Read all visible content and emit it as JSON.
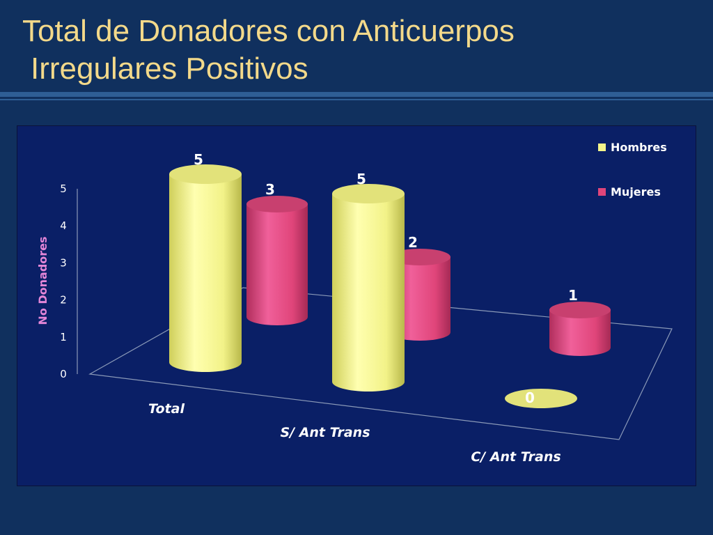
{
  "slide": {
    "title_line1": "Total de Donadores con Anticuerpos",
    "title_line2": "Irregulares Positivos"
  },
  "colors": {
    "background": "#10305e",
    "title": "#f3d98a",
    "plot_area": "#0a1f66",
    "hombres": "#f5f58a",
    "mujeres": "#e0457a",
    "ylabel": "#e486d8"
  },
  "chart_data": {
    "type": "bar",
    "style": "3d-cylinder",
    "categories": [
      "Total",
      "S/ Ant Trans",
      "C/ Ant Trans"
    ],
    "series": [
      {
        "name": "Hombres",
        "values": [
          5,
          5,
          0
        ]
      },
      {
        "name": "Mujeres",
        "values": [
          3,
          2,
          1
        ]
      }
    ],
    "ylabel": "No Donadores",
    "xlabel": "",
    "ylim": [
      0,
      5
    ],
    "yticks": [
      0,
      1,
      2,
      3,
      4,
      5
    ],
    "legend": "top-right",
    "grid": false,
    "data_labels": true
  }
}
